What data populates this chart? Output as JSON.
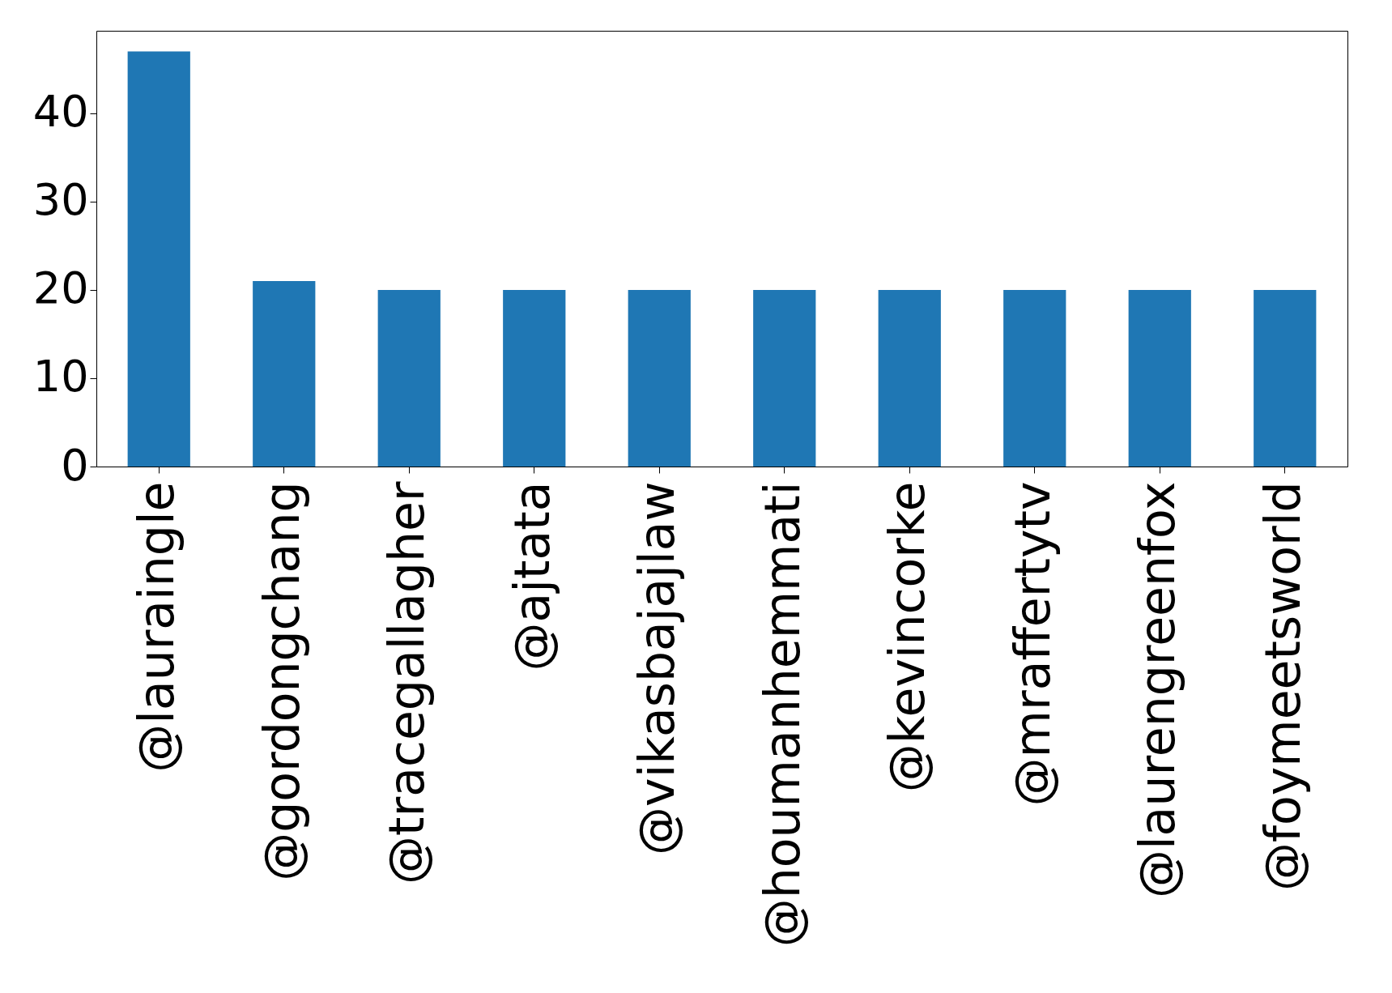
{
  "chart_data": {
    "type": "bar",
    "categories": [
      "@lauraingle",
      "@gordongchang",
      "@tracegallagher",
      "@ajtata",
      "@vikasbajajlaw",
      "@houmanhemmati",
      "@kevincorke",
      "@mraffertytv",
      "@laurengreenfox",
      "@foymeetsworld"
    ],
    "values": [
      47,
      21,
      20,
      20,
      20,
      20,
      20,
      20,
      20,
      20
    ],
    "color": "#1f77b4",
    "ylim": [
      0,
      49.35
    ],
    "yticks": [
      0,
      10,
      20,
      30,
      40
    ],
    "grid": false
  }
}
